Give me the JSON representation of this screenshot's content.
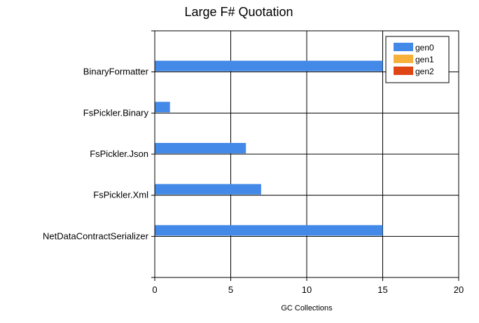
{
  "chart_data": {
    "type": "bar",
    "orientation": "horizontal",
    "title": "Large F# Quotation",
    "xlabel": "GC Collections",
    "ylabel": "",
    "xlim": [
      0,
      20
    ],
    "xticks": [
      0,
      5,
      10,
      15,
      20
    ],
    "grid": true,
    "legend_position": "top-right",
    "categories": [
      "BinaryFormatter",
      "FsPickler.Binary",
      "FsPickler.Json",
      "FsPickler.Xml",
      "NetDataContractSerializer"
    ],
    "series": [
      {
        "name": "gen0",
        "color": "#4389E8",
        "values": [
          15,
          1,
          6,
          7,
          15
        ]
      },
      {
        "name": "gen1",
        "color": "#F7B03A",
        "values": [
          0,
          0,
          0,
          0,
          0
        ]
      },
      {
        "name": "gen2",
        "color": "#E04613",
        "values": [
          0,
          0,
          0,
          0,
          0
        ]
      }
    ]
  }
}
